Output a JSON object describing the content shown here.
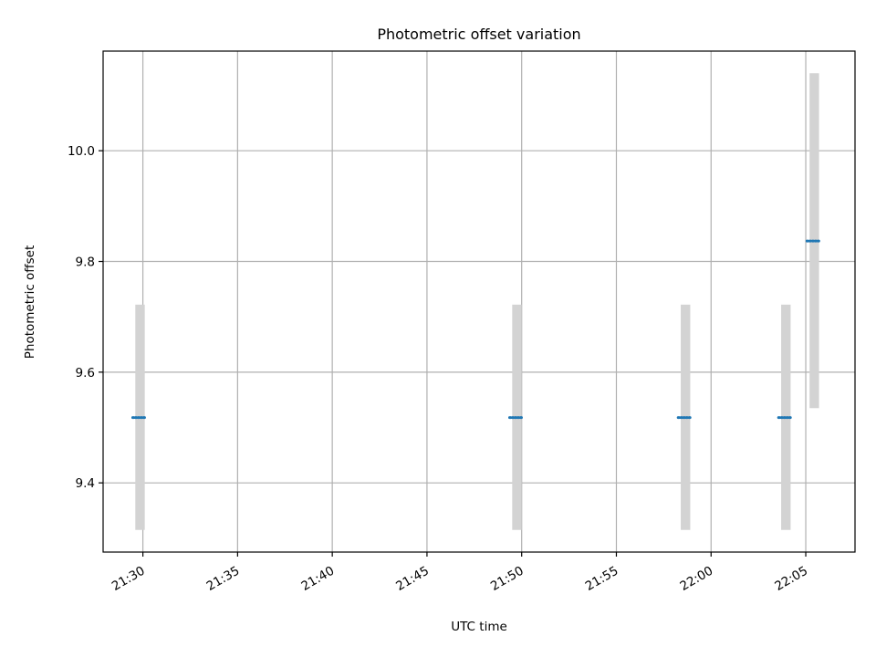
{
  "chart_data": {
    "type": "scatter",
    "title": "Photometric offset variation",
    "xlabel": "UTC time",
    "ylabel": "Photometric offset",
    "x_ticks": [
      "21:30",
      "21:35",
      "21:40",
      "21:45",
      "21:50",
      "21:55",
      "22:00",
      "22:05"
    ],
    "y_ticks": [
      "9.4",
      "9.6",
      "9.8",
      "10.0"
    ],
    "xlim": [
      "21:27.9",
      "22:07.6"
    ],
    "ylim": [
      9.275,
      10.18
    ],
    "grid": true,
    "error_bars": [
      {
        "x_start": "21:29.6",
        "x_end": "21:30.1",
        "y_low": 9.315,
        "y_high": 9.722
      },
      {
        "x_start": "21:49.5",
        "x_end": "21:50.0",
        "y_low": 9.315,
        "y_high": 9.722
      },
      {
        "x_start": "21:58.4",
        "x_end": "21:58.9",
        "y_low": 9.315,
        "y_high": 9.722
      },
      {
        "x_start": "22:03.7",
        "x_end": "22:04.2",
        "y_low": 9.315,
        "y_high": 9.722
      },
      {
        "x_start": "22:05.2",
        "x_end": "22:05.7",
        "y_low": 9.535,
        "y_high": 10.14
      }
    ],
    "points": [
      {
        "x": "21:29.8",
        "y": 9.518
      },
      {
        "x": "21:49.7",
        "y": 9.518
      },
      {
        "x": "21:58.6",
        "y": 9.518
      },
      {
        "x": "22:03.9",
        "y": 9.518
      },
      {
        "x": "22:05.4",
        "y": 9.837
      }
    ],
    "colors": {
      "points": "#1f77b4",
      "error_bars": "#d3d3d3",
      "grid": "#b0b0b0",
      "axes": "#000000"
    }
  }
}
